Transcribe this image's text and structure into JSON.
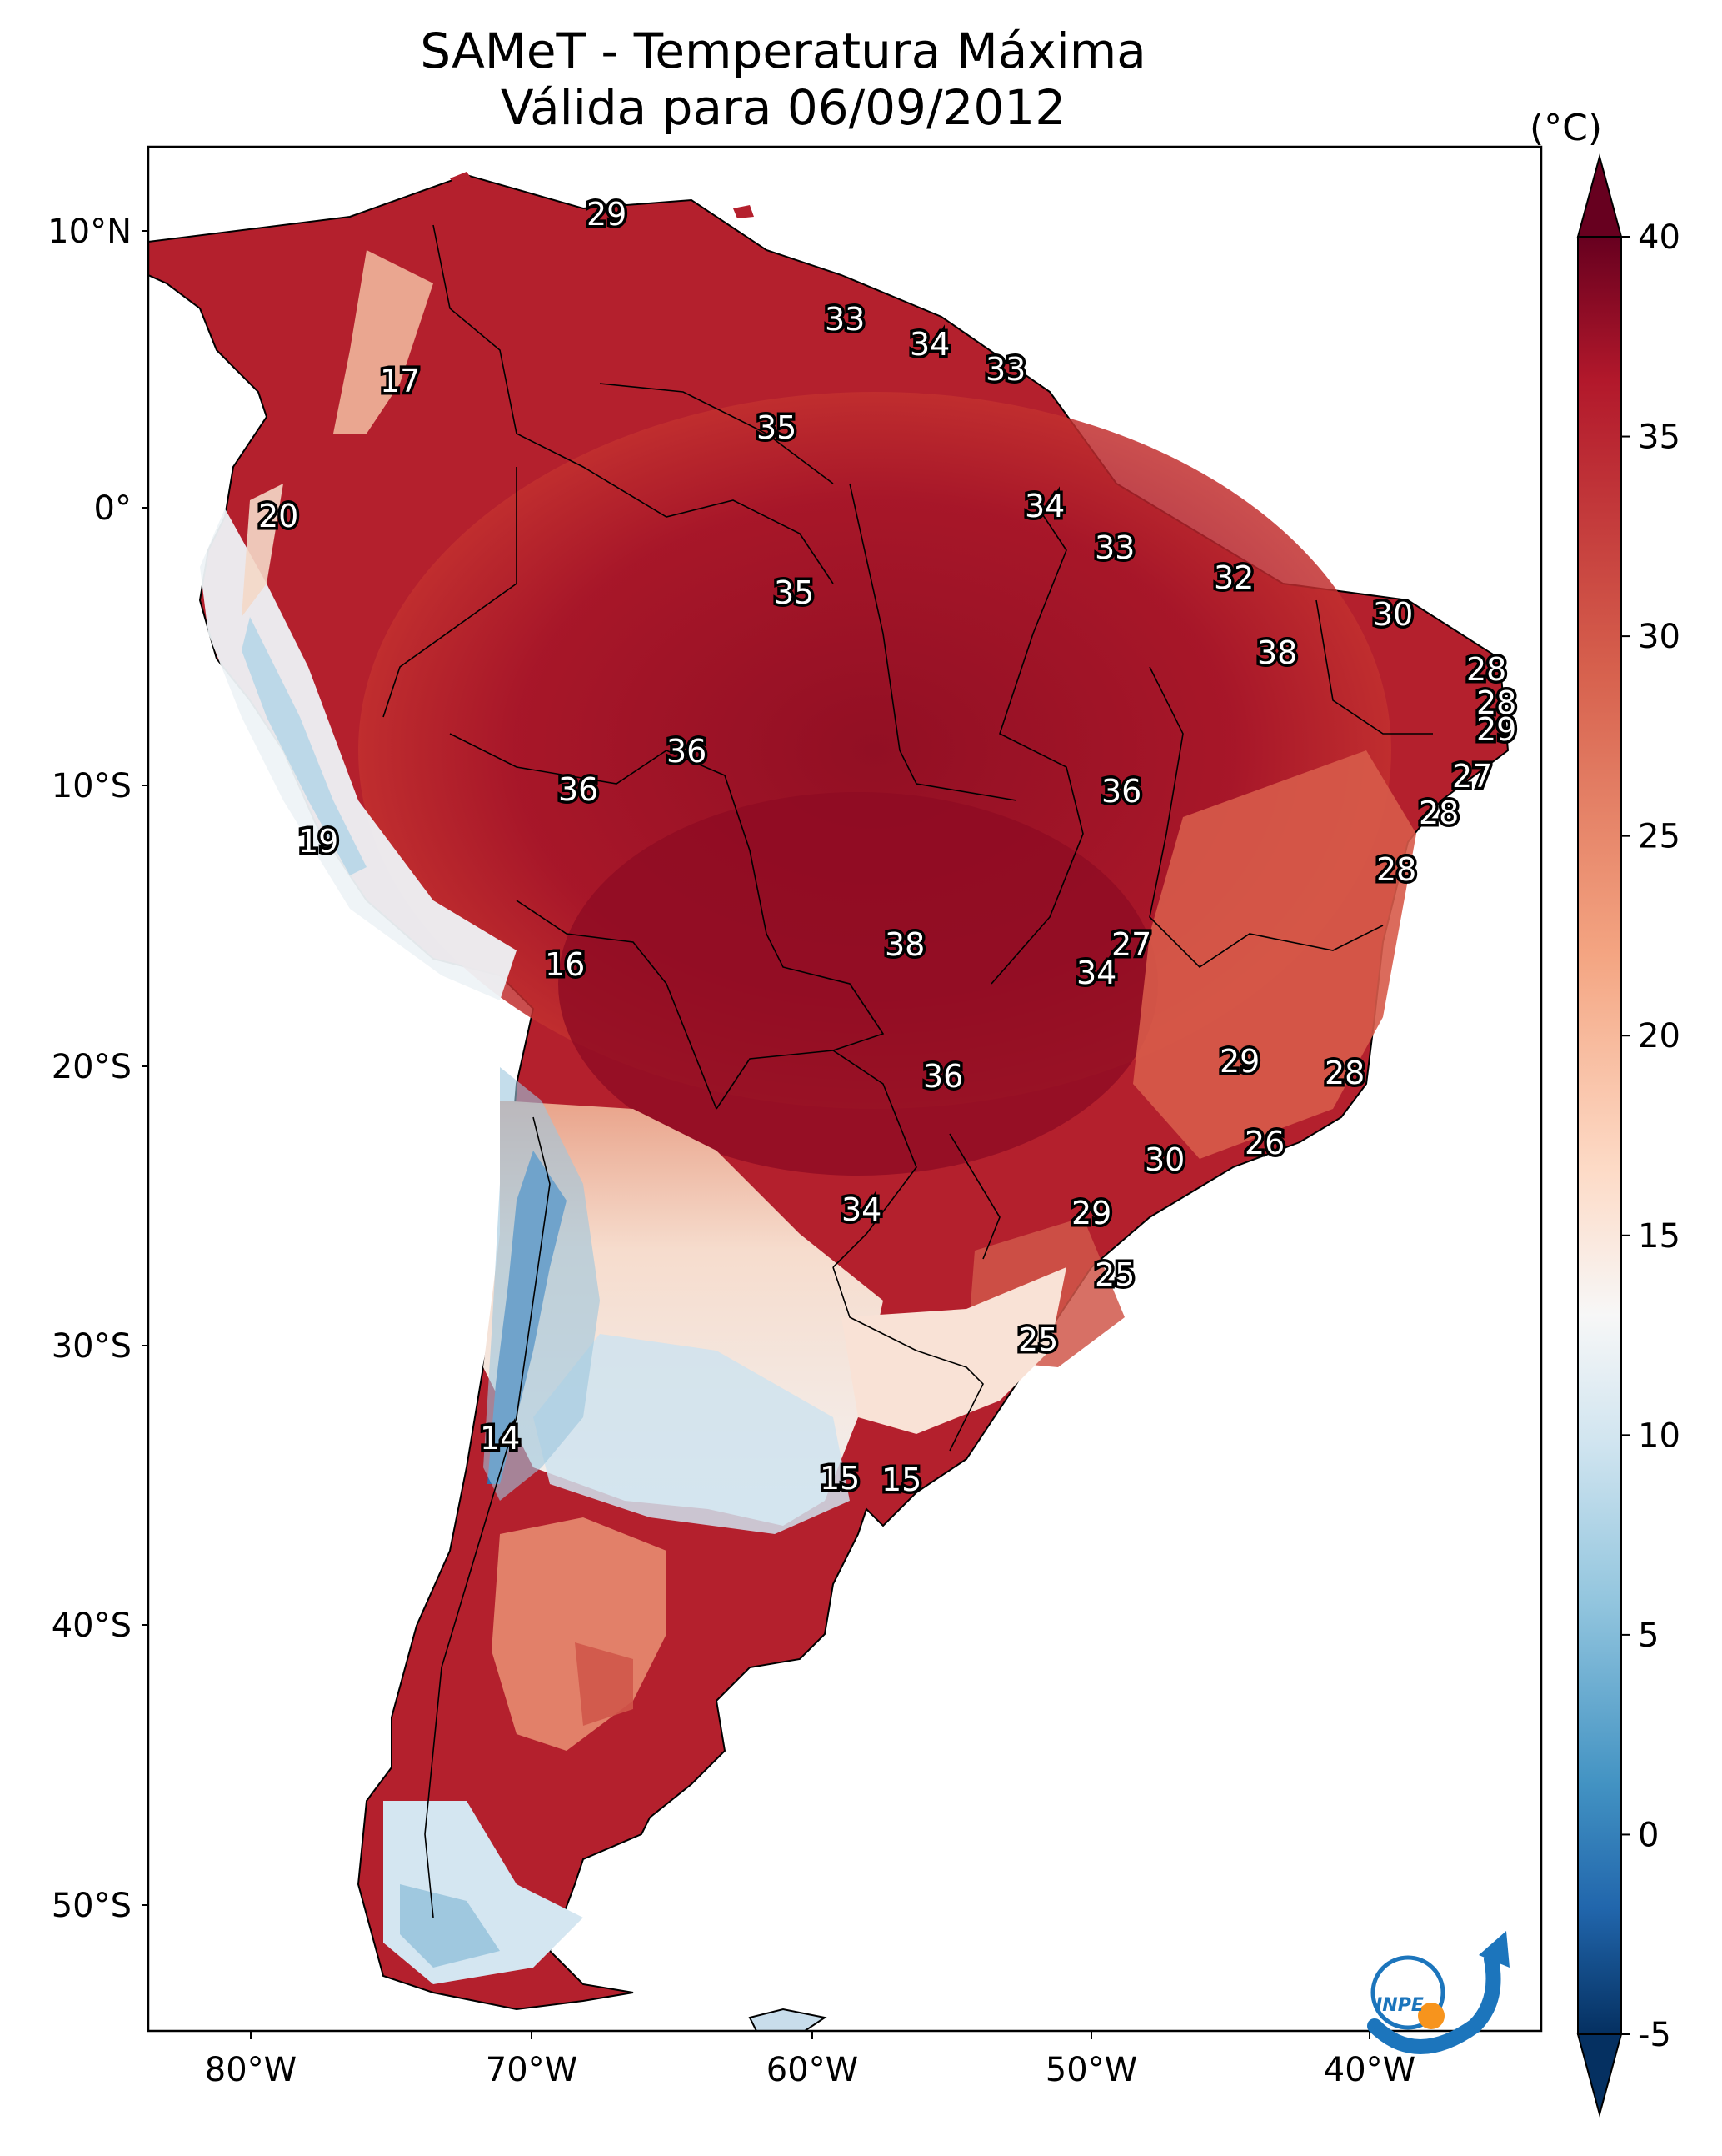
{
  "title": {
    "line1": "SAMeT - Temperatura Máxima",
    "line2": "Válida para 06/09/2012"
  },
  "colorbar": {
    "unit": "(°C)",
    "ticks": [
      "40",
      "35",
      "30",
      "25",
      "20",
      "15",
      "10",
      "5",
      "0",
      "-5"
    ],
    "colors": [
      "#67001f",
      "#b2182b",
      "#d6604d",
      "#f4a582",
      "#fddbc7",
      "#f7f7f7",
      "#d1e5f0",
      "#92c5de",
      "#4393c3",
      "#2166ac",
      "#053061"
    ]
  },
  "axes": {
    "lat_labels": [
      "10°N",
      "0°",
      "10°S",
      "20°S",
      "30°S",
      "40°S",
      "50°S"
    ],
    "lon_labels": [
      "80°W",
      "70°W",
      "60°W",
      "50°W",
      "40°W"
    ]
  },
  "logo": {
    "text": "INPE",
    "colors": [
      "#1c75bc",
      "#f7941d"
    ]
  },
  "temperature_labels": [
    {
      "id": "t1",
      "value": "29"
    },
    {
      "id": "t2",
      "value": "33"
    },
    {
      "id": "t3",
      "value": "34"
    },
    {
      "id": "t4",
      "value": "33"
    },
    {
      "id": "t5",
      "value": "17"
    },
    {
      "id": "t6",
      "value": "35"
    },
    {
      "id": "t7",
      "value": "20"
    },
    {
      "id": "t8",
      "value": "34"
    },
    {
      "id": "t9",
      "value": "33"
    },
    {
      "id": "t10",
      "value": "35"
    },
    {
      "id": "t11",
      "value": "32"
    },
    {
      "id": "t12",
      "value": "30"
    },
    {
      "id": "t13",
      "value": "38"
    },
    {
      "id": "t14",
      "value": "28"
    },
    {
      "id": "t15",
      "value": "28"
    },
    {
      "id": "t16",
      "value": "29"
    },
    {
      "id": "t17",
      "value": "36"
    },
    {
      "id": "t18",
      "value": "36"
    },
    {
      "id": "t19",
      "value": "36"
    },
    {
      "id": "t20",
      "value": "27"
    },
    {
      "id": "t21",
      "value": "28"
    },
    {
      "id": "t22",
      "value": "19"
    },
    {
      "id": "t23",
      "value": "28"
    },
    {
      "id": "t24",
      "value": "38"
    },
    {
      "id": "t25",
      "value": "27"
    },
    {
      "id": "t26",
      "value": "16"
    },
    {
      "id": "t27",
      "value": "34"
    },
    {
      "id": "t28",
      "value": "29"
    },
    {
      "id": "t29",
      "value": "28"
    },
    {
      "id": "t30",
      "value": "36"
    },
    {
      "id": "t31",
      "value": "26"
    },
    {
      "id": "t32",
      "value": "30"
    },
    {
      "id": "t33",
      "value": "34"
    },
    {
      "id": "t34",
      "value": "29"
    },
    {
      "id": "t35",
      "value": "25"
    },
    {
      "id": "t36",
      "value": "25"
    },
    {
      "id": "t37",
      "value": "14"
    },
    {
      "id": "t38",
      "value": "15"
    },
    {
      "id": "t39",
      "value": "15"
    }
  ]
}
